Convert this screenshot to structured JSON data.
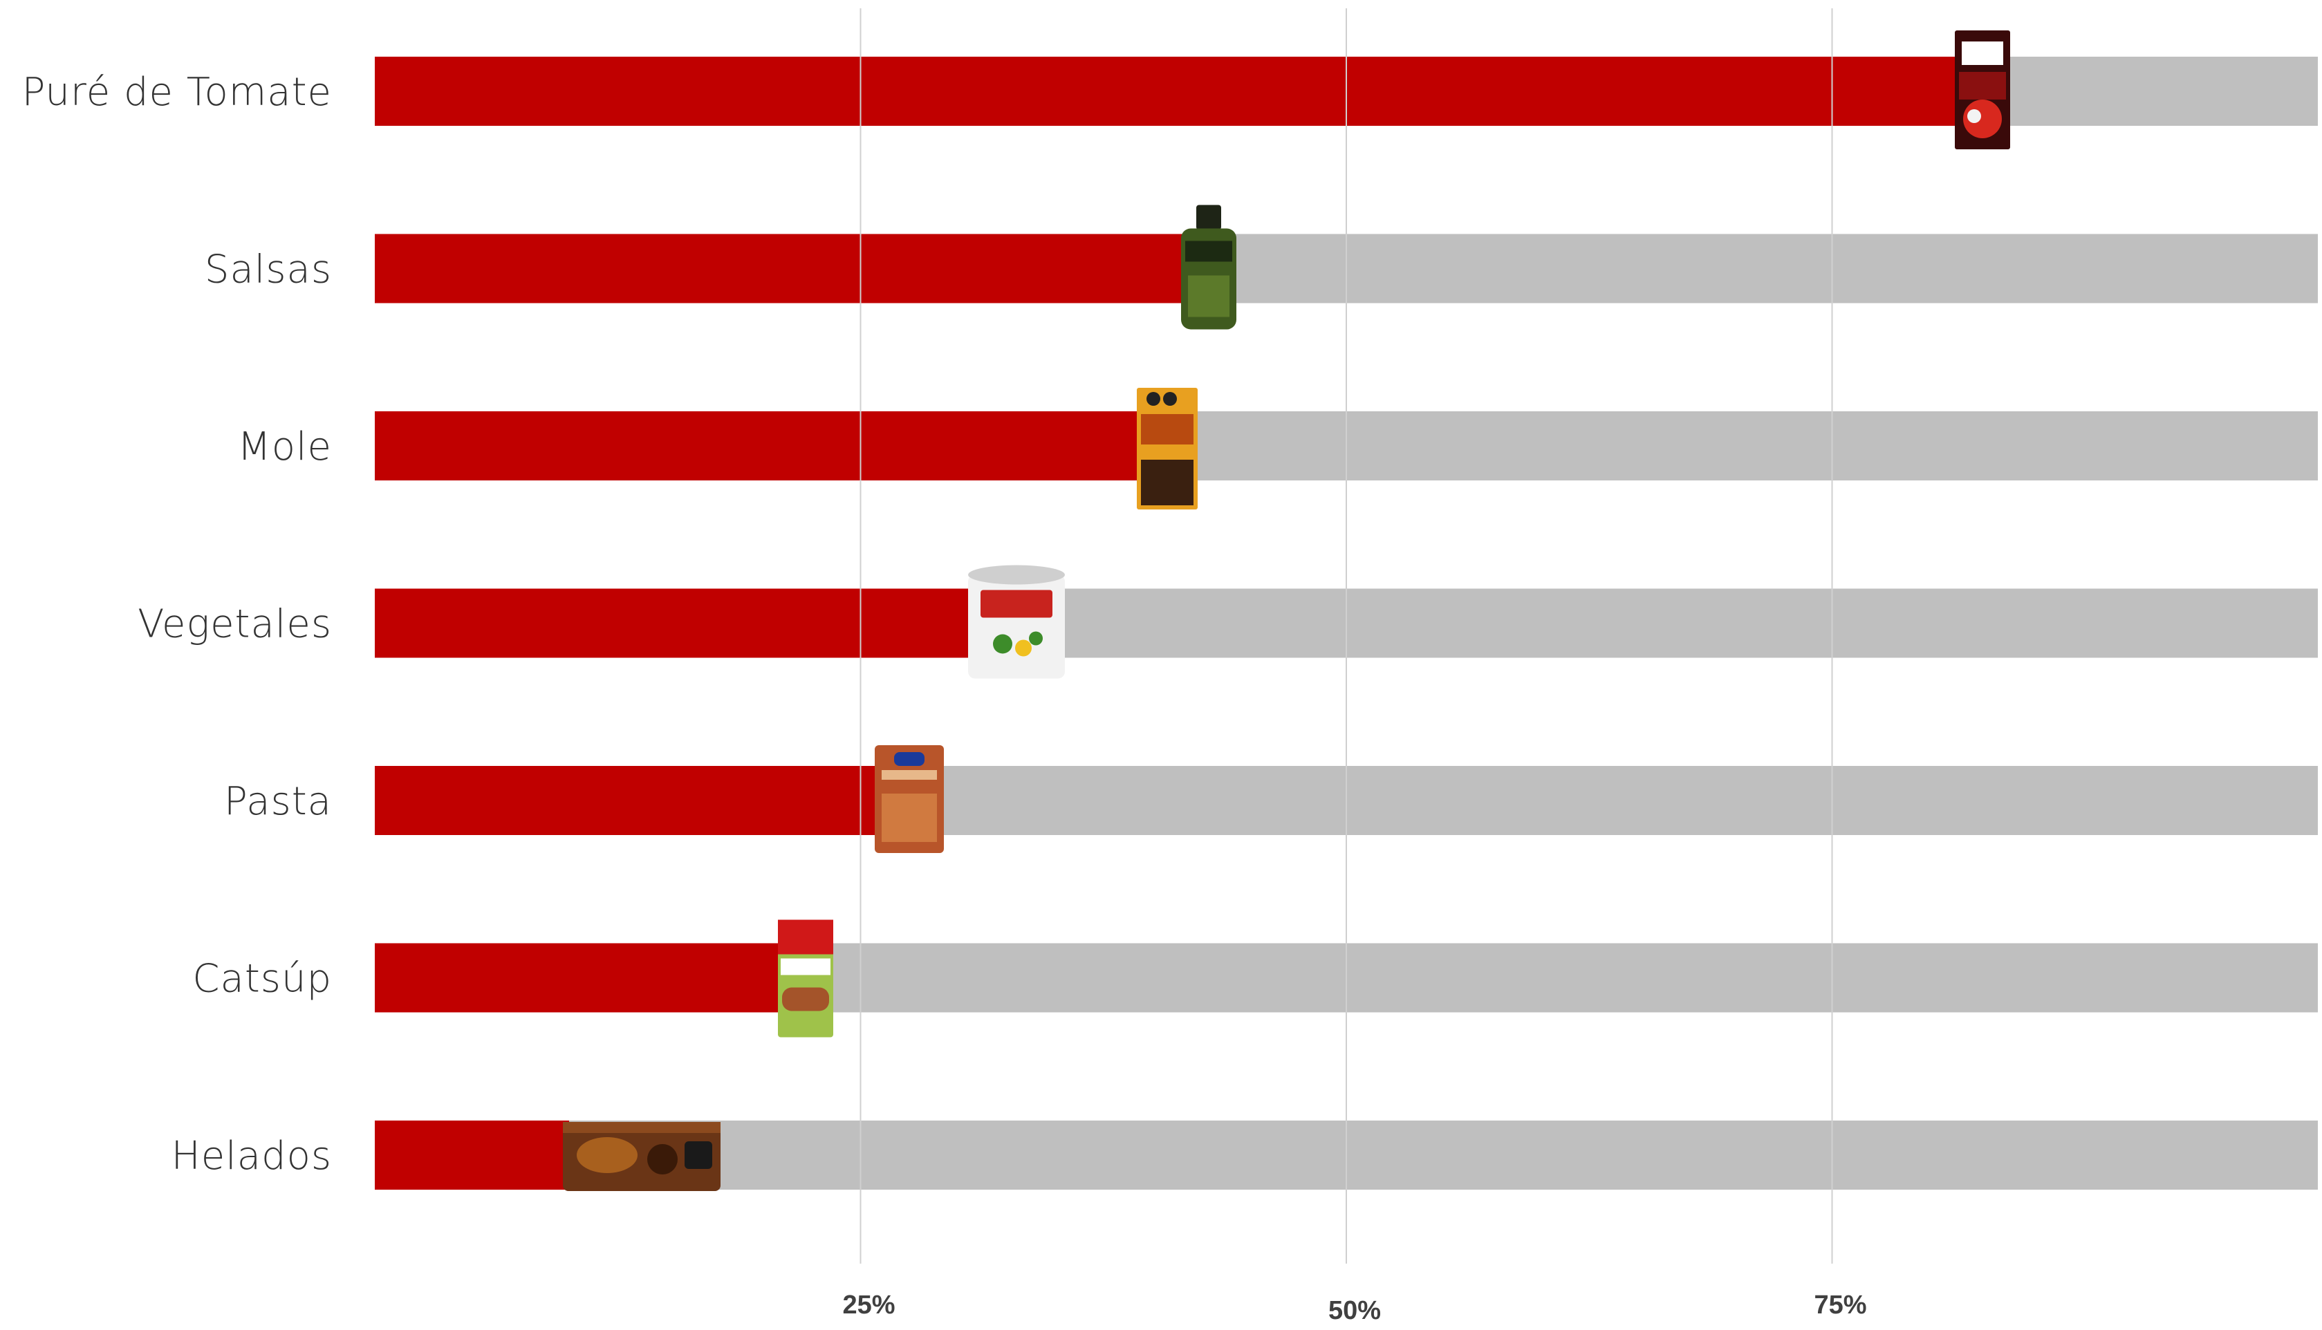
{
  "chart_data": {
    "type": "bar",
    "orientation": "horizontal",
    "categories": [
      "Puré de Tomate",
      "Salsas",
      "Mole",
      "Vegetales",
      "Pasta",
      "Catsúp",
      "Helados"
    ],
    "values": [
      83,
      44,
      41,
      31,
      27,
      22,
      10
    ],
    "xlim": [
      0,
      100
    ],
    "xticks": [
      25,
      50,
      75
    ],
    "xtick_labels": [
      "25%",
      "50%",
      "75%"
    ],
    "grid": "vertical",
    "title": "",
    "xlabel": "",
    "ylabel": "",
    "colors": {
      "bar": "#c00000",
      "track": "#bfbfbf",
      "grid": "#d0d0d0"
    },
    "product_icons": [
      "tomato-puree-carton-icon",
      "green-salsa-jar-icon",
      "mole-box-icon",
      "vegetable-can-icon",
      "pasta-bag-icon",
      "ketchup-pouch-icon",
      "ice-cream-bar-icon"
    ]
  }
}
